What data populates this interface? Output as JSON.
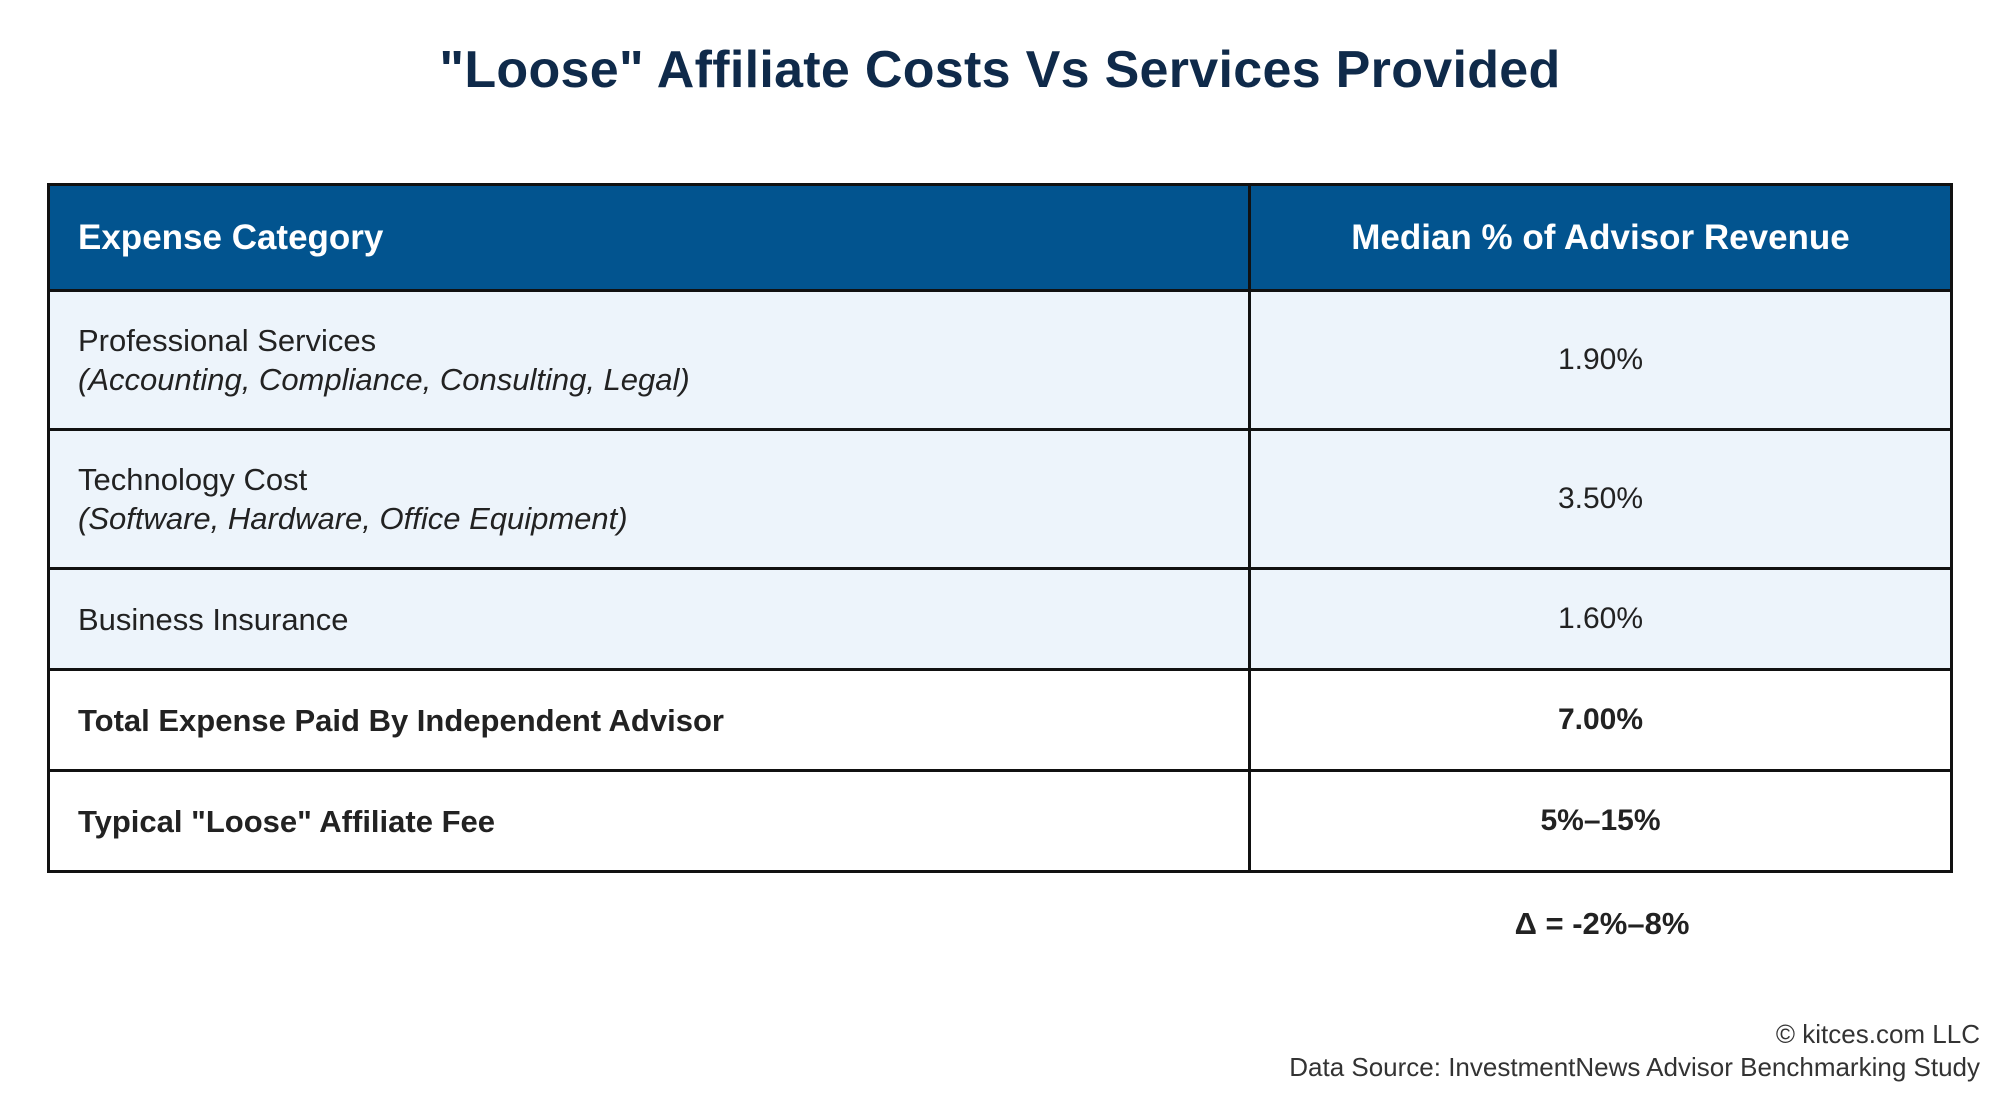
{
  "title": "\"Loose\" Affiliate Costs Vs Services Provided",
  "colors": {
    "title": "#0f2a4a",
    "header_bg": "#02548f",
    "header_text": "#ffffff",
    "shaded_row_bg": "#edf4fb",
    "border": "#111111"
  },
  "table": {
    "headers": [
      "Expense Category",
      "Median % of Advisor Revenue"
    ],
    "rows": [
      {
        "category": "Professional Services",
        "detail": "(Accounting, Compliance, Consulting, Legal)",
        "value": "1.90%"
      },
      {
        "category": "Technology Cost",
        "detail": "(Software, Hardware, Office Equipment)",
        "value": "3.50%"
      },
      {
        "category": "Business Insurance",
        "value": "1.60%"
      },
      {
        "category": "Total Expense Paid By Independent Advisor",
        "value": "7.00%"
      },
      {
        "category": "Typical \"Loose\" Affiliate Fee",
        "value": "5%–15%"
      }
    ]
  },
  "delta": "Δ = -2%–8%",
  "footer": {
    "copyright": "© kitces.com LLC",
    "source": "Data Source: InvestmentNews Advisor Benchmarking Study"
  }
}
